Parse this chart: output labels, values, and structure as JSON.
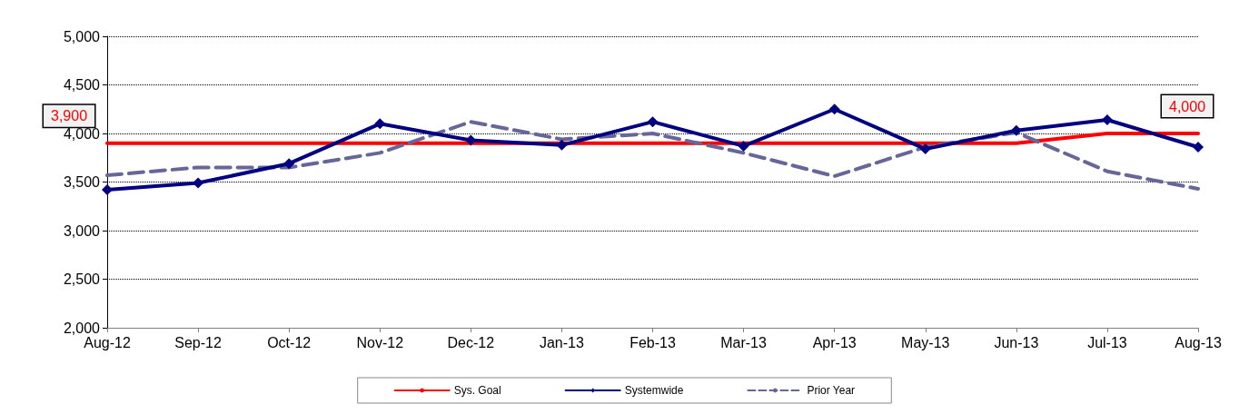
{
  "chart_data": {
    "type": "line",
    "categories": [
      "Aug-12",
      "Sep-12",
      "Oct-12",
      "Nov-12",
      "Dec-12",
      "Jan-13",
      "Feb-13",
      "Mar-13",
      "Apr-13",
      "May-13",
      "Jun-13",
      "Jul-13",
      "Aug-13"
    ],
    "series": [
      {
        "name": "Sys. Goal",
        "color": "#ff0000",
        "values": [
          3900,
          3900,
          3900,
          3900,
          3900,
          3900,
          3900,
          3900,
          3900,
          3900,
          3900,
          4000,
          4000
        ],
        "value_labels": [
          "3,900",
          null,
          null,
          null,
          null,
          null,
          null,
          null,
          null,
          null,
          null,
          null,
          "4,000"
        ],
        "marker": "none",
        "line_style": "solid"
      },
      {
        "name": "Systemwide",
        "color": "#000080",
        "values": [
          3420,
          3490,
          3690,
          4100,
          3930,
          3880,
          4120,
          3870,
          4250,
          3840,
          4030,
          4140,
          3860
        ],
        "marker": "diamond",
        "line_style": "solid"
      },
      {
        "name": "Prior Year",
        "color": "#666699",
        "values": [
          3570,
          3650,
          3650,
          3800,
          4120,
          3940,
          4000,
          3800,
          3560,
          3860,
          4010,
          3610,
          3430
        ],
        "marker": "none",
        "line_style": "dashed"
      }
    ],
    "ylim": [
      2000,
      5000
    ],
    "yticks": [
      {
        "value": 2000,
        "label": "2,000"
      },
      {
        "value": 2500,
        "label": "2,500"
      },
      {
        "value": 3000,
        "label": "3,000"
      },
      {
        "value": 3500,
        "label": "3,500"
      },
      {
        "value": 4000,
        "label": "4,000"
      },
      {
        "value": 4500,
        "label": "4,500"
      },
      {
        "value": 5000,
        "label": "5,000"
      }
    ],
    "grid": "y",
    "legend": "bottom"
  }
}
